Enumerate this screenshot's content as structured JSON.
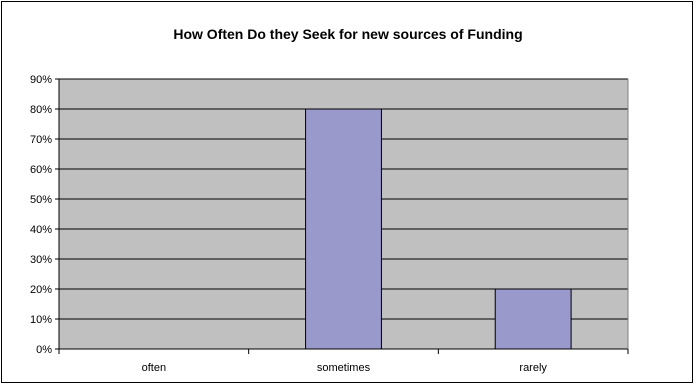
{
  "chart_data": {
    "type": "bar",
    "title": "How Often Do they Seek for new sources of Funding",
    "xlabel": "",
    "ylabel": "",
    "categories": [
      "often",
      "sometimes",
      "rarely"
    ],
    "values": [
      0,
      80,
      20
    ],
    "value_unit": "%",
    "ylim": [
      0,
      90
    ],
    "ytick_step": 10,
    "ytick_labels": [
      "0%",
      "10%",
      "20%",
      "30%",
      "40%",
      "50%",
      "60%",
      "70%",
      "80%",
      "90%"
    ],
    "grid": true,
    "legend": "none",
    "colors": {
      "plot_background": "#c0c0c0",
      "bar_fill": "#9999cc",
      "bar_stroke": "#000000",
      "gridline": "#000000"
    }
  }
}
